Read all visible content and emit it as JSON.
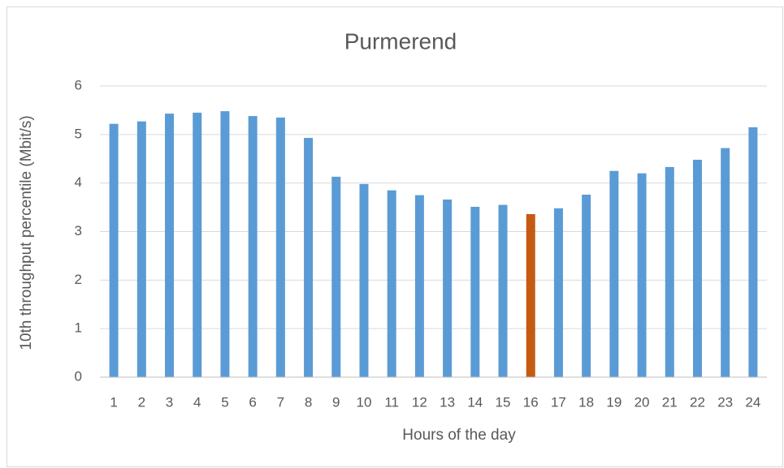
{
  "chart_data": {
    "type": "bar",
    "title": "Purmerend",
    "x_label": "Hours of the day",
    "y_label": "10th throughput percentile (Mbit/s)",
    "categories": [
      "1",
      "2",
      "3",
      "4",
      "5",
      "6",
      "7",
      "8",
      "9",
      "10",
      "11",
      "12",
      "13",
      "14",
      "15",
      "16",
      "17",
      "18",
      "19",
      "20",
      "21",
      "22",
      "23",
      "24"
    ],
    "values": [
      5.22,
      5.27,
      5.43,
      5.45,
      5.48,
      5.38,
      5.35,
      4.93,
      4.13,
      3.98,
      3.85,
      3.75,
      3.66,
      3.51,
      3.55,
      3.36,
      3.48,
      3.76,
      4.25,
      4.2,
      4.33,
      4.48,
      4.72,
      5.15
    ],
    "colors": [
      "#5b9bd5",
      "#5b9bd5",
      "#5b9bd5",
      "#5b9bd5",
      "#5b9bd5",
      "#5b9bd5",
      "#5b9bd5",
      "#5b9bd5",
      "#5b9bd5",
      "#5b9bd5",
      "#5b9bd5",
      "#5b9bd5",
      "#5b9bd5",
      "#5b9bd5",
      "#5b9bd5",
      "#c55a11",
      "#5b9bd5",
      "#5b9bd5",
      "#5b9bd5",
      "#5b9bd5",
      "#5b9bd5",
      "#5b9bd5",
      "#5b9bd5",
      "#5b9bd5"
    ],
    "ylim": [
      0,
      6
    ],
    "yticks": [
      0,
      1,
      2,
      3,
      4,
      5,
      6
    ],
    "grid": true
  }
}
